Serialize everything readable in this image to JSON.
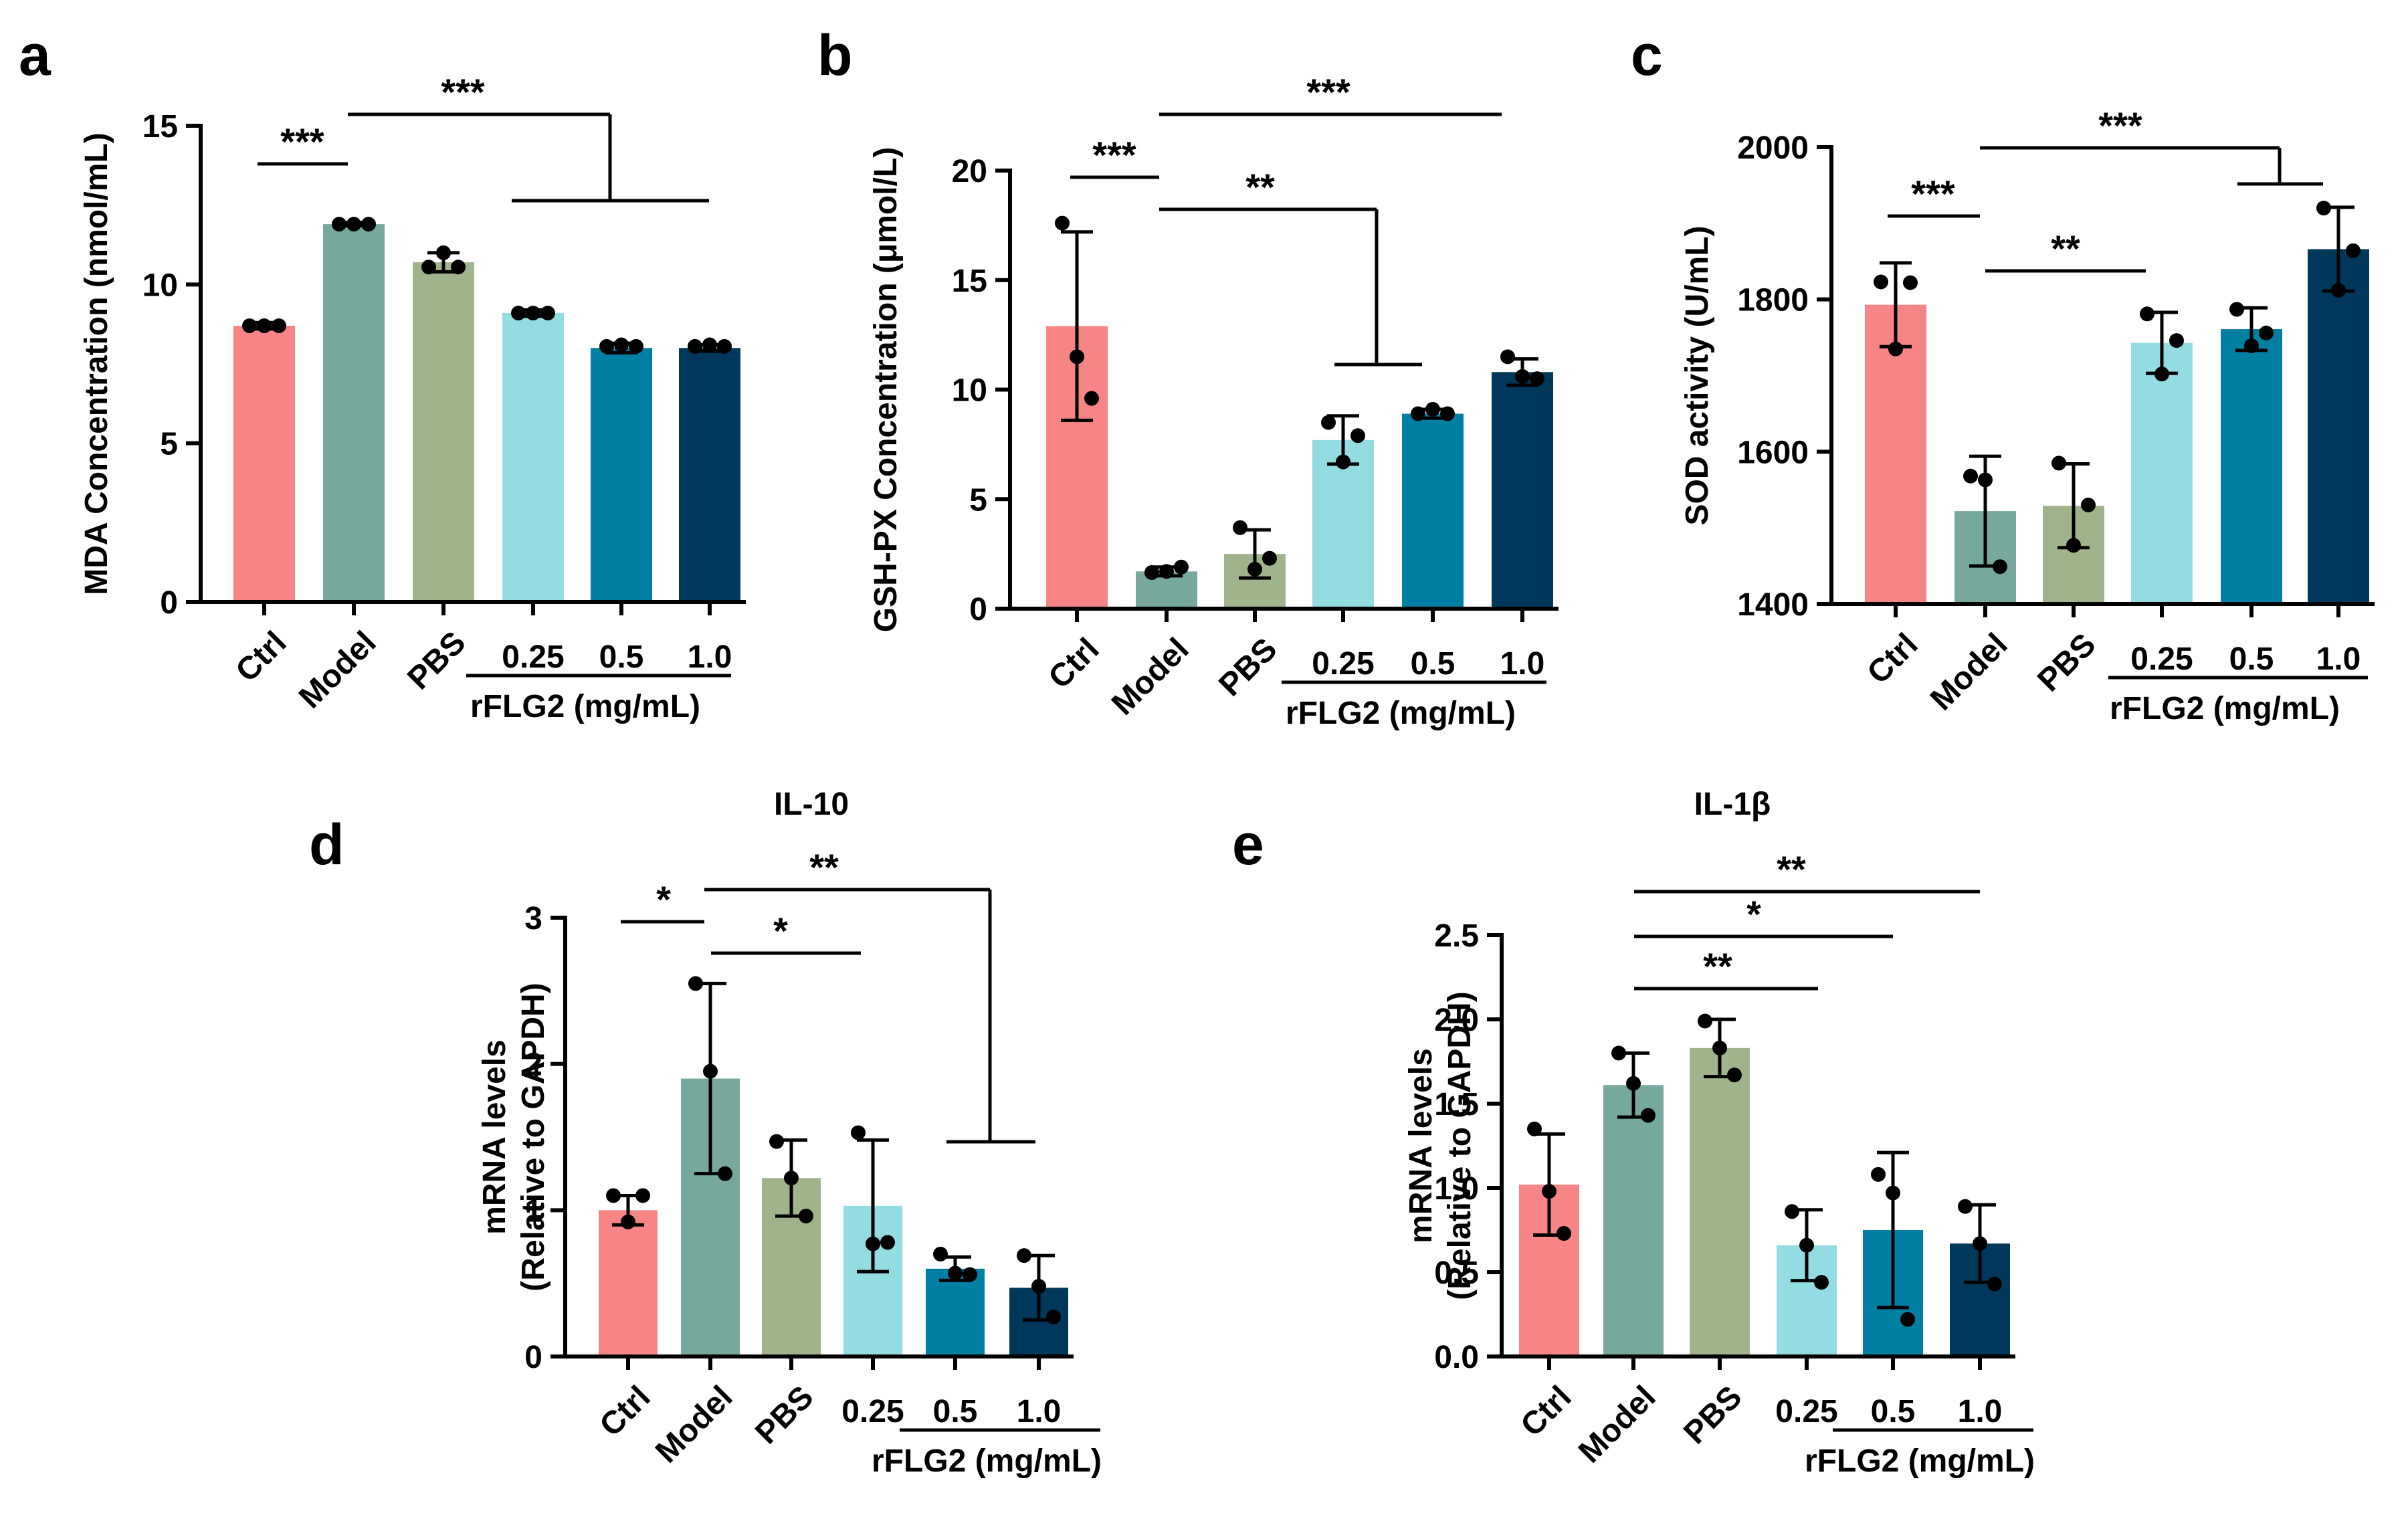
{
  "groups": {
    "categories": [
      "Ctrl",
      "Model",
      "PBS",
      "0.25",
      "0.5",
      "1.0"
    ],
    "treatment_label": "rFLG2 (mg/mL)"
  },
  "colors": [
    "#f88585",
    "#76a89e",
    "#a0b48c",
    "#93dde2",
    "#007fa2",
    "#00385b"
  ],
  "chart_data": [
    {
      "panel": "a",
      "type": "bar",
      "title": "",
      "ylabel": "MDA Concentration (nmol/mL)",
      "ylim": [
        0,
        15
      ],
      "yticks": [
        "0",
        "5",
        "10",
        "15"
      ],
      "categories": [
        "Ctrl",
        "Model",
        "PBS",
        "0.25",
        "0.5",
        "1.0"
      ],
      "values": [
        8.7,
        11.9,
        10.7,
        9.1,
        8.0,
        8.0
      ],
      "errors": [
        0.1,
        0.05,
        0.3,
        0.1,
        0.15,
        0.1
      ],
      "points": [
        [
          8.7,
          8.7,
          8.7
        ],
        [
          11.9,
          11.9,
          11.9
        ],
        [
          10.55,
          11.0,
          10.55
        ],
        [
          9.1,
          9.1,
          9.1
        ],
        [
          8.05,
          8.1,
          8.05
        ],
        [
          8.05,
          8.1,
          8.05
        ]
      ],
      "significance": [
        "***",
        "***"
      ]
    },
    {
      "panel": "b",
      "type": "bar",
      "title": "",
      "ylabel": "GSH-PX Concentration (μmol/L)",
      "ylim": [
        0,
        20
      ],
      "yticks": [
        "0",
        "5",
        "10",
        "15",
        "20"
      ],
      "categories": [
        "Ctrl",
        "Model",
        "PBS",
        "0.25",
        "0.5",
        "1.0"
      ],
      "values": [
        12.9,
        1.7,
        2.5,
        7.7,
        8.9,
        10.8
      ],
      "errors": [
        4.3,
        0.2,
        1.1,
        1.1,
        0.2,
        0.6
      ],
      "points": [
        [
          17.6,
          11.5,
          9.6
        ],
        [
          1.65,
          1.7,
          1.9
        ],
        [
          3.7,
          1.8,
          2.3
        ],
        [
          8.5,
          6.7,
          7.9
        ],
        [
          8.9,
          9.1,
          8.9
        ],
        [
          11.5,
          10.6,
          10.5
        ]
      ],
      "significance": [
        "***",
        "***",
        "**"
      ]
    },
    {
      "panel": "c",
      "type": "bar",
      "title": "",
      "ylabel": "SOD activity  (U/mL)",
      "ylim": [
        1400,
        2000
      ],
      "yticks": [
        "1400",
        "1600",
        "1800",
        "2000"
      ],
      "categories": [
        "Ctrl",
        "Model",
        "PBS",
        "0.25",
        "0.5",
        "1.0"
      ],
      "values": [
        1793,
        1522,
        1529,
        1743,
        1761,
        1866
      ],
      "errors": [
        55,
        72,
        55,
        40,
        28,
        55
      ],
      "points": [
        [
          1823,
          1735,
          1822
        ],
        [
          1568,
          1563,
          1449
        ],
        [
          1585,
          1477,
          1530
        ],
        [
          1781,
          1702,
          1746
        ],
        [
          1787,
          1739,
          1756
        ],
        [
          1920,
          1812,
          1864
        ]
      ],
      "significance": [
        "***",
        "***",
        "**"
      ]
    },
    {
      "panel": "d",
      "type": "bar",
      "title": "IL-10",
      "ylabel": "mRNA levels (Relative to GAPDH)",
      "ylabel_lines": [
        "mRNA levels",
        "(Relative to GAPDH)"
      ],
      "ylim": [
        0,
        3
      ],
      "yticks": [
        "0",
        "1",
        "2",
        "3"
      ],
      "categories": [
        "Ctrl",
        "Model",
        "PBS",
        "0.25",
        "0.5",
        "1.0"
      ],
      "values": [
        1.0,
        1.9,
        1.22,
        1.03,
        0.6,
        0.47
      ],
      "errors": [
        0.1,
        0.65,
        0.26,
        0.45,
        0.08,
        0.22
      ],
      "points": [
        [
          1.1,
          0.92,
          1.1
        ],
        [
          2.55,
          1.95,
          1.25
        ],
        [
          1.47,
          1.22,
          0.96
        ],
        [
          1.53,
          0.77,
          0.78
        ],
        [
          0.7,
          0.57,
          0.56
        ],
        [
          0.69,
          0.48,
          0.27
        ]
      ],
      "significance": [
        "*",
        "**",
        "*"
      ]
    },
    {
      "panel": "e",
      "type": "bar",
      "title": "IL-1β",
      "ylabel": "mRNA levels (Relative to GAPDH)",
      "ylabel_lines": [
        "mRNA levels",
        "(Relative to GAPDH)"
      ],
      "ylim": [
        0,
        2.5
      ],
      "yticks": [
        "0.0",
        "0.5",
        "1.0",
        "1.5",
        "2.0",
        "2.5"
      ],
      "categories": [
        "Ctrl",
        "Model",
        "PBS",
        "0.25",
        "0.5",
        "1.0"
      ],
      "values": [
        1.02,
        1.61,
        1.83,
        0.66,
        0.75,
        0.67
      ],
      "errors": [
        0.3,
        0.19,
        0.17,
        0.21,
        0.46,
        0.23
      ],
      "points": [
        [
          1.35,
          0.98,
          0.73
        ],
        [
          1.8,
          1.62,
          1.43
        ],
        [
          1.99,
          1.83,
          1.67
        ],
        [
          0.86,
          0.66,
          0.44
        ],
        [
          1.08,
          0.97,
          0.22
        ],
        [
          0.89,
          0.67,
          0.43
        ]
      ],
      "significance": [
        "**",
        "*",
        "**"
      ]
    }
  ]
}
